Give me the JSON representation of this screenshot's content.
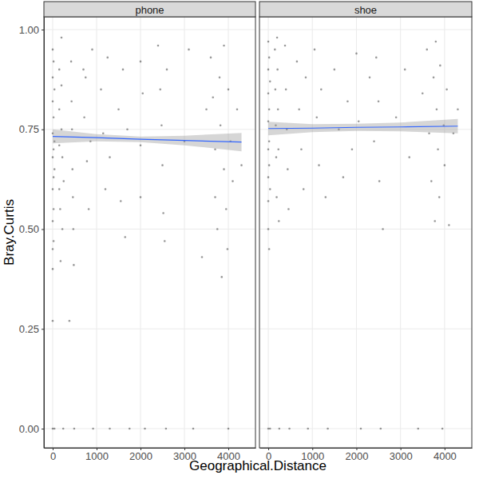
{
  "chart_data": {
    "type": "scatter",
    "x_label": "Geographical.Distance",
    "y_label": "Bray.Curtis",
    "xlim": [
      -200,
      4618
    ],
    "xticks": [
      0,
      1000,
      2000,
      3000,
      4000
    ],
    "ylim": [
      -0.048,
      1.032
    ],
    "yticks": [
      {
        "value": 0,
        "label": "0.00"
      },
      {
        "value": 0.25,
        "label": "0.25"
      },
      {
        "value": 0.5,
        "label": "0.50"
      },
      {
        "value": 0.75,
        "label": "0.75"
      },
      {
        "value": 1,
        "label": "1.00"
      }
    ],
    "grid": true,
    "panels": [
      {
        "title": "phone",
        "series": [
          {
            "type": "scatter",
            "color": "#000000",
            "x": [
              0,
              0,
              0,
              0,
              0,
              0,
              0,
              0,
              0,
              0,
              0,
              20,
              20,
              20,
              20,
              20,
              20,
              40,
              40,
              40,
              40,
              150,
              150,
              150,
              150,
              170,
              180,
              200,
              200,
              200,
              220,
              220,
              240,
              250,
              380,
              420,
              430,
              440,
              450,
              460,
              470,
              480,
              490,
              700,
              720,
              750,
              780,
              820,
              860,
              900,
              920,
              1100,
              1150,
              1200,
              1250,
              1300,
              1300,
              1500,
              1550,
              1600,
              1650,
              1700,
              1750,
              2000,
              2000,
              2000,
              2050,
              2100,
              2400,
              2450,
              2480,
              2500,
              2520,
              2550,
              2580,
              2600,
              3000,
              3100,
              3200,
              3400,
              3500,
              3600,
              3650,
              3700,
              3700,
              3750,
              3800,
              3820,
              3850,
              3900,
              3900,
              3950,
              3980,
              4000,
              4000,
              4050,
              4100,
              4200,
              4300
            ],
            "values": [
              0.95,
              0.88,
              0.82,
              0.74,
              0.68,
              0.6,
              0.52,
              0.45,
              0.4,
              0.27,
              0,
              0.92,
              0.78,
              0.7,
              0.63,
              0.55,
              0.47,
              0.85,
              0.72,
              0.65,
              0,
              0.9,
              0.8,
              0.71,
              0.6,
              0.55,
              0.42,
              0.98,
              0.86,
              0.75,
              0.68,
              0.5,
              0,
              0.62,
              0.27,
              0.92,
              0.82,
              0.75,
              0.65,
              0.58,
              0.5,
              0.41,
              0,
              0.9,
              0.78,
              0.88,
              0.67,
              0.55,
              0.72,
              0.95,
              0,
              0.85,
              0.74,
              0.6,
              0.93,
              0.68,
              0,
              0.8,
              0.57,
              0.9,
              0.48,
              0.75,
              0,
              0.92,
              0.71,
              0.58,
              0.84,
              0,
              0.96,
              0.85,
              0.76,
              0.66,
              0.54,
              0.47,
              0,
              0.9,
              0.72,
              0.95,
              0,
              0.43,
              0.8,
              0.93,
              0.83,
              0.7,
              0.58,
              0.5,
              0.88,
              0.76,
              0.38,
              0.65,
              0.96,
              0.55,
              0.45,
              0.85,
              0,
              0.72,
              0.62,
              0.8,
              0.66
            ]
          },
          {
            "type": "line",
            "color": "#3366ff",
            "x": [
              0,
              1000,
              2000,
              3000,
              4300
            ],
            "values": [
              0.732,
              0.729,
              0.725,
              0.722,
              0.718
            ],
            "lower": [
              0.715,
              0.72,
              0.718,
              0.71,
              0.695
            ],
            "upper": [
              0.75,
              0.738,
              0.732,
              0.734,
              0.741
            ]
          }
        ]
      },
      {
        "title": "shoe",
        "series": [
          {
            "type": "scatter",
            "color": "#000000",
            "x": [
              0,
              0,
              0,
              0,
              0,
              0,
              0,
              0,
              0,
              20,
              20,
              20,
              20,
              20,
              40,
              40,
              40,
              150,
              160,
              170,
              180,
              190,
              200,
              210,
              220,
              230,
              240,
              250,
              380,
              400,
              420,
              440,
              460,
              480,
              650,
              700,
              750,
              800,
              850,
              900,
              1050,
              1100,
              1150,
              1200,
              1300,
              1350,
              1500,
              1600,
              1700,
              1800,
              1900,
              2000,
              2050,
              2100,
              2300,
              2400,
              2450,
              2500,
              2520,
              2550,
              2600,
              2900,
              3100,
              3200,
              3400,
              3500,
              3600,
              3650,
              3700,
              3750,
              3780,
              3800,
              3820,
              3850,
              3880,
              3900,
              3950,
              3980,
              4000,
              4050,
              4100,
              4200,
              4300
            ],
            "values": [
              0.97,
              0.9,
              0.84,
              0.77,
              0.7,
              0.63,
              0.57,
              0.5,
              0,
              0.93,
              0.8,
              0.72,
              0.66,
              0.45,
              0.87,
              0.6,
              0,
              0.95,
              0.85,
              0.76,
              0.68,
              0.58,
              0.98,
              0.9,
              0.8,
              0.7,
              0.52,
              0,
              0.96,
              0.85,
              0.75,
              0.65,
              0.55,
              0,
              0.92,
              0.8,
              0.7,
              0.6,
              0.88,
              0,
              0.95,
              0.78,
              0.66,
              0.85,
              0.58,
              0,
              0.9,
              0.75,
              0.63,
              0.82,
              0.7,
              0.94,
              0.77,
              0,
              0.88,
              0.72,
              0.93,
              0.82,
              0.62,
              0,
              0.5,
              0.78,
              0.9,
              0.68,
              0,
              0.84,
              0.95,
              0.74,
              0.62,
              0.88,
              0.52,
              0.97,
              0.8,
              0.7,
              0.58,
              0.91,
              0,
              0.76,
              0.66,
              0.85,
              0.51,
              0.74,
              0.8
            ]
          },
          {
            "type": "line",
            "color": "#3366ff",
            "x": [
              0,
              1000,
              2000,
              3000,
              4300
            ],
            "values": [
              0.752,
              0.753,
              0.755,
              0.756,
              0.758
            ],
            "lower": [
              0.735,
              0.743,
              0.746,
              0.745,
              0.74
            ],
            "upper": [
              0.769,
              0.763,
              0.764,
              0.767,
              0.776
            ]
          }
        ]
      }
    ]
  }
}
